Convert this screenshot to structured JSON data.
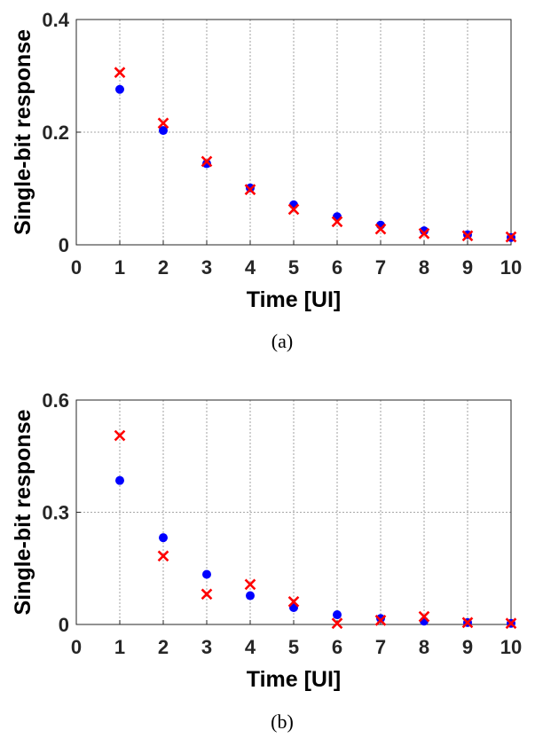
{
  "chart_data": [
    {
      "type": "scatter",
      "xlabel": "Time [UI]",
      "ylabel": "Single-bit response",
      "caption": "(a)",
      "xlim": [
        0,
        10
      ],
      "ylim": [
        0,
        0.4
      ],
      "xticks": [
        "0",
        "1",
        "2",
        "3",
        "4",
        "5",
        "6",
        "7",
        "8",
        "9",
        "10"
      ],
      "yticks": [
        {
          "value": 0,
          "label": "0"
        },
        {
          "value": 0.2,
          "label": "0.2"
        },
        {
          "value": 0.4,
          "label": "0.4"
        }
      ],
      "grid": true,
      "series": [
        {
          "marker": "circle",
          "color": "#0000ff",
          "x": [
            1,
            2,
            3,
            4,
            5,
            6,
            7,
            8,
            9,
            10
          ],
          "y": [
            0.276,
            0.203,
            0.144,
            0.101,
            0.071,
            0.05,
            0.035,
            0.025,
            0.018,
            0.013
          ]
        },
        {
          "marker": "x",
          "color": "#ff0000",
          "x": [
            1,
            2,
            3,
            4,
            5,
            6,
            7,
            8,
            9,
            10
          ],
          "y": [
            0.306,
            0.216,
            0.148,
            0.098,
            0.063,
            0.041,
            0.028,
            0.02,
            0.016,
            0.014
          ]
        }
      ]
    },
    {
      "type": "scatter",
      "xlabel": "Time [UI]",
      "ylabel": "Single-bit response",
      "caption": "(b)",
      "xlim": [
        0,
        10
      ],
      "ylim": [
        0,
        0.6
      ],
      "xticks": [
        "0",
        "1",
        "2",
        "3",
        "4",
        "5",
        "6",
        "7",
        "8",
        "9",
        "10"
      ],
      "yticks": [
        {
          "value": 0,
          "label": "0"
        },
        {
          "value": 0.3,
          "label": "0.3"
        },
        {
          "value": 0.6,
          "label": "0.6"
        }
      ],
      "grid": true,
      "series": [
        {
          "marker": "circle",
          "color": "#0000ff",
          "x": [
            1,
            2,
            3,
            4,
            5,
            6,
            7,
            8,
            9,
            10
          ],
          "y": [
            0.385,
            0.232,
            0.134,
            0.077,
            0.045,
            0.026,
            0.016,
            0.009,
            0.005,
            0.003
          ]
        },
        {
          "marker": "x",
          "color": "#ff0000",
          "x": [
            1,
            2,
            3,
            4,
            5,
            6,
            7,
            8,
            9,
            10
          ],
          "y": [
            0.505,
            0.183,
            0.081,
            0.107,
            0.061,
            0.003,
            0.011,
            0.021,
            0.005,
            0.003
          ]
        }
      ]
    }
  ]
}
